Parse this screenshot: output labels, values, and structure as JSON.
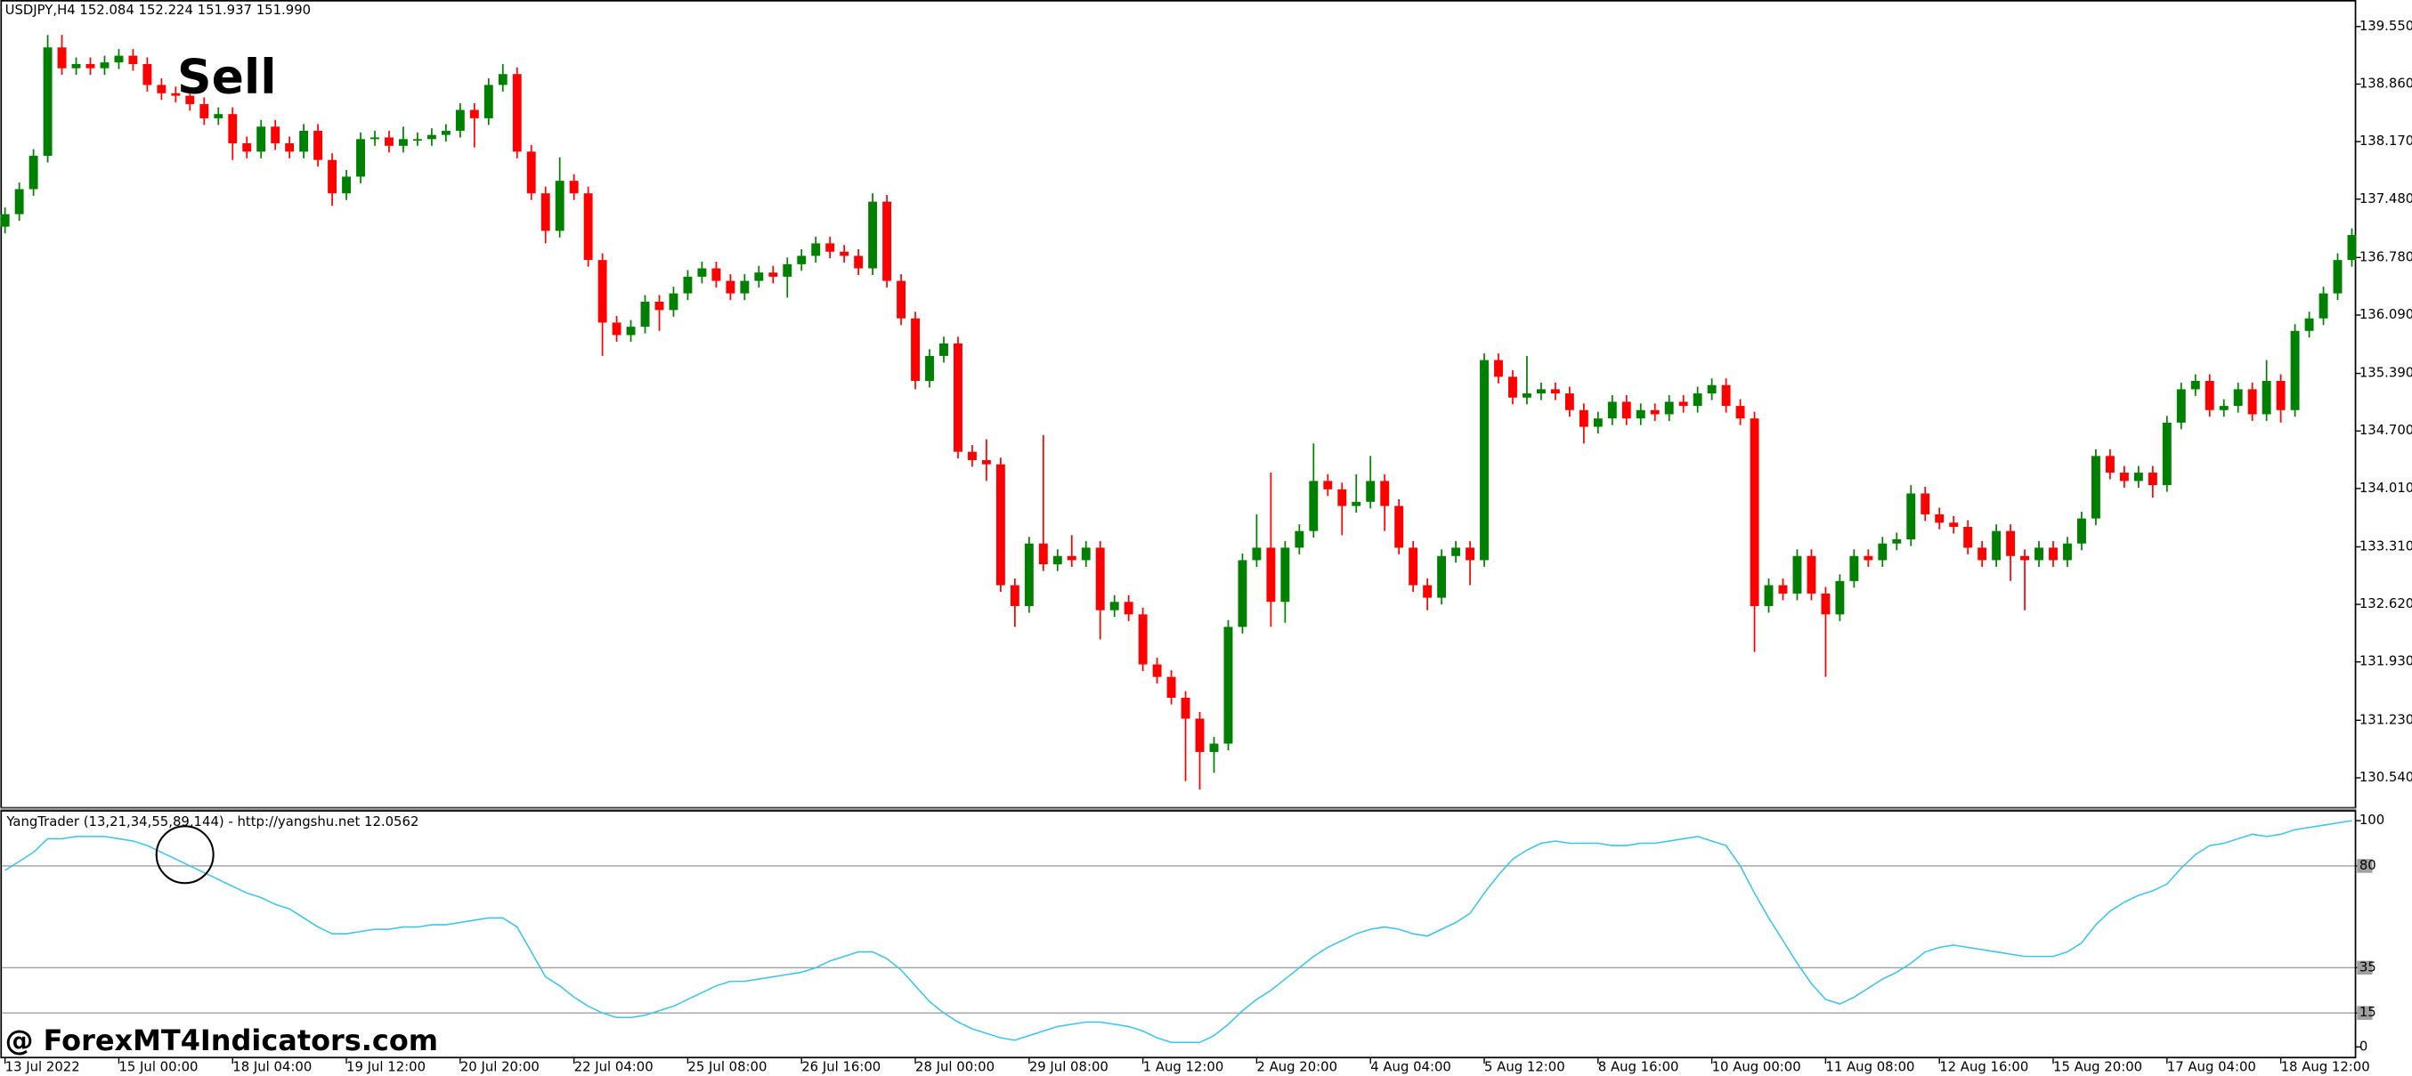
{
  "header": "USDJPY,H4  152.084 152.224 151.937 151.990",
  "watermark": "@ ForexMT4Indicators.com",
  "chart_data": [
    {
      "type": "candlestick",
      "annotation": "Sell",
      "up_color": "#008000",
      "down_color": "#ff0000",
      "open": [
        137.15,
        137.3,
        137.6,
        138.0,
        139.3,
        139.05,
        139.1,
        139.05,
        139.12,
        139.2,
        139.1,
        138.85,
        138.75,
        138.72,
        138.62,
        138.45,
        138.5,
        138.15,
        138.05,
        138.35,
        138.15,
        138.05,
        138.3,
        137.95,
        137.55,
        137.75,
        138.2,
        138.22,
        138.12,
        138.2,
        138.2,
        138.25,
        138.3,
        138.55,
        138.45,
        138.85,
        138.98,
        138.05,
        137.55,
        137.1,
        137.7,
        137.55,
        136.75,
        136.0,
        135.85,
        135.95,
        136.25,
        136.15,
        136.35,
        136.55,
        136.65,
        136.5,
        136.35,
        136.5,
        136.6,
        136.55,
        136.7,
        136.8,
        136.95,
        136.85,
        136.8,
        136.65,
        137.45,
        136.5,
        136.05,
        135.3,
        135.6,
        135.75,
        134.45,
        134.35,
        134.3,
        132.85,
        132.6,
        133.35,
        133.1,
        133.2,
        133.15,
        133.3,
        132.55,
        132.65,
        132.5,
        131.9,
        131.75,
        131.5,
        131.25,
        130.85,
        130.95,
        132.35,
        133.15,
        133.3,
        132.65,
        133.3,
        133.5,
        134.1,
        134.0,
        133.8,
        133.85,
        134.1,
        133.8,
        133.3,
        132.85,
        132.7,
        133.2,
        133.3,
        133.15,
        135.55,
        135.35,
        135.1,
        135.15,
        135.2,
        135.15,
        134.95,
        134.75,
        134.85,
        135.05,
        134.85,
        134.95,
        134.9,
        135.05,
        135.0,
        135.15,
        135.25,
        135.0,
        134.85,
        132.6,
        132.85,
        132.75,
        133.2,
        132.75,
        132.5,
        132.9,
        133.2,
        133.15,
        133.35,
        133.4,
        133.95,
        133.7,
        133.6,
        133.55,
        133.3,
        133.15,
        133.5,
        133.2,
        133.15,
        133.3,
        133.15,
        133.35,
        133.65,
        134.4,
        134.2,
        134.1,
        134.2,
        134.05,
        134.8,
        135.2,
        135.3,
        134.95,
        135.0,
        135.2,
        134.9,
        135.3,
        134.95,
        135.9,
        136.05,
        136.35,
        136.75
      ],
      "high": [
        137.38,
        137.68,
        138.08,
        139.45,
        139.45,
        139.18,
        139.18,
        139.2,
        139.28,
        139.28,
        139.18,
        138.93,
        138.83,
        138.8,
        138.7,
        138.58,
        138.58,
        138.23,
        138.43,
        138.43,
        138.23,
        138.38,
        138.38,
        138.03,
        137.83,
        138.28,
        138.3,
        138.3,
        138.35,
        138.28,
        138.33,
        138.38,
        138.63,
        138.63,
        138.93,
        139.1,
        139.06,
        138.13,
        137.63,
        137.98,
        137.78,
        137.63,
        136.83,
        136.08,
        136.03,
        136.33,
        136.33,
        136.43,
        136.63,
        136.73,
        136.73,
        136.58,
        136.58,
        136.68,
        136.68,
        136.78,
        136.88,
        137.03,
        137.03,
        136.93,
        136.88,
        137.55,
        137.53,
        136.58,
        136.13,
        135.68,
        135.83,
        135.83,
        134.53,
        134.6,
        134.38,
        132.93,
        133.43,
        134.65,
        133.28,
        133.45,
        133.38,
        133.38,
        132.73,
        132.73,
        132.58,
        131.98,
        131.83,
        131.58,
        131.33,
        131.03,
        132.43,
        133.23,
        133.7,
        134.2,
        133.38,
        133.58,
        134.55,
        134.18,
        134.08,
        134.18,
        134.4,
        134.18,
        133.88,
        133.38,
        132.93,
        133.28,
        133.38,
        133.38,
        135.63,
        135.63,
        135.43,
        135.6,
        135.28,
        135.28,
        135.23,
        135.03,
        134.93,
        135.13,
        135.13,
        135.03,
        135.03,
        135.13,
        135.13,
        135.23,
        135.33,
        135.33,
        135.08,
        134.93,
        132.93,
        132.93,
        133.28,
        133.28,
        132.83,
        132.98,
        133.28,
        133.28,
        133.43,
        133.48,
        134.05,
        134.03,
        133.78,
        133.68,
        133.63,
        133.38,
        133.58,
        133.58,
        133.28,
        133.38,
        133.38,
        133.43,
        133.73,
        134.48,
        134.48,
        134.28,
        134.28,
        134.28,
        134.88,
        135.28,
        135.38,
        135.38,
        135.08,
        135.28,
        135.28,
        135.55,
        135.38,
        135.98,
        136.13,
        136.43,
        136.83,
        137.13
      ],
      "low": [
        137.07,
        137.22,
        137.52,
        137.92,
        138.97,
        138.97,
        138.97,
        138.97,
        139.04,
        139.02,
        138.77,
        138.67,
        138.64,
        138.54,
        138.37,
        138.37,
        137.95,
        137.97,
        137.97,
        138.07,
        137.97,
        137.97,
        137.87,
        137.4,
        137.47,
        137.67,
        138.12,
        138.04,
        138.04,
        138.12,
        138.12,
        138.17,
        138.22,
        138.1,
        138.37,
        138.77,
        137.97,
        137.47,
        136.95,
        137.02,
        137.47,
        136.67,
        135.6,
        135.77,
        135.77,
        135.87,
        135.9,
        136.07,
        136.27,
        136.47,
        136.42,
        136.27,
        136.27,
        136.42,
        136.47,
        136.3,
        136.62,
        136.72,
        136.77,
        136.72,
        136.57,
        136.57,
        136.42,
        135.97,
        135.2,
        135.22,
        135.52,
        134.37,
        134.27,
        134.1,
        132.77,
        132.35,
        132.52,
        133.02,
        133.02,
        133.07,
        133.07,
        132.2,
        132.47,
        132.42,
        131.82,
        131.67,
        131.42,
        130.5,
        130.4,
        130.6,
        130.87,
        132.27,
        133.07,
        132.35,
        132.4,
        133.22,
        133.42,
        133.92,
        133.45,
        133.72,
        133.77,
        133.5,
        133.22,
        132.77,
        132.55,
        132.62,
        133.12,
        132.85,
        133.07,
        135.27,
        135.02,
        135.02,
        135.07,
        135.07,
        134.87,
        134.55,
        134.67,
        134.77,
        134.77,
        134.77,
        134.82,
        134.82,
        134.92,
        134.92,
        135.07,
        134.92,
        134.77,
        132.05,
        132.52,
        132.67,
        132.67,
        132.67,
        131.75,
        132.42,
        132.82,
        133.07,
        133.07,
        133.27,
        133.32,
        133.62,
        133.52,
        133.47,
        133.22,
        133.07,
        133.07,
        132.9,
        132.55,
        133.07,
        133.07,
        133.07,
        133.27,
        133.57,
        134.12,
        134.02,
        134.02,
        133.9,
        133.97,
        134.72,
        135.12,
        134.87,
        134.87,
        134.92,
        134.82,
        134.82,
        134.8,
        134.87,
        135.82,
        135.97,
        136.27,
        136.67
      ],
      "close": [
        137.3,
        137.6,
        138.0,
        139.3,
        139.05,
        139.1,
        139.05,
        139.12,
        139.2,
        139.1,
        138.85,
        138.75,
        138.72,
        138.62,
        138.45,
        138.5,
        138.15,
        138.05,
        138.35,
        138.15,
        138.05,
        138.3,
        137.95,
        137.55,
        137.75,
        138.2,
        138.22,
        138.12,
        138.2,
        138.2,
        138.25,
        138.3,
        138.55,
        138.45,
        138.85,
        138.98,
        138.05,
        137.55,
        137.1,
        137.7,
        137.55,
        136.75,
        136.0,
        135.85,
        135.95,
        136.25,
        136.15,
        136.35,
        136.55,
        136.65,
        136.5,
        136.35,
        136.5,
        136.6,
        136.55,
        136.7,
        136.8,
        136.95,
        136.85,
        136.8,
        136.65,
        137.45,
        136.5,
        136.05,
        135.3,
        135.6,
        135.75,
        134.45,
        134.35,
        134.3,
        132.85,
        132.6,
        133.35,
        133.1,
        133.2,
        133.15,
        133.3,
        132.55,
        132.65,
        132.5,
        131.9,
        131.75,
        131.5,
        131.25,
        130.85,
        130.95,
        132.35,
        133.15,
        133.3,
        132.65,
        133.3,
        133.5,
        134.1,
        134.0,
        133.8,
        133.85,
        134.1,
        133.8,
        133.3,
        132.85,
        132.7,
        133.2,
        133.3,
        133.15,
        135.55,
        135.35,
        135.1,
        135.15,
        135.2,
        135.15,
        134.95,
        134.75,
        134.85,
        135.05,
        134.85,
        134.95,
        134.9,
        135.05,
        135.0,
        135.15,
        135.25,
        135.0,
        134.85,
        132.6,
        132.85,
        132.75,
        133.2,
        132.75,
        132.5,
        132.9,
        133.2,
        133.15,
        133.35,
        133.4,
        133.95,
        133.7,
        133.6,
        133.55,
        133.3,
        133.15,
        133.5,
        133.2,
        133.15,
        133.3,
        133.15,
        133.35,
        133.65,
        134.4,
        134.2,
        134.1,
        134.2,
        134.05,
        134.8,
        135.2,
        135.3,
        134.95,
        135.0,
        135.2,
        134.9,
        135.3,
        134.95,
        135.9,
        136.05,
        136.35,
        136.75,
        137.05
      ],
      "xlim": [
        -0.22,
        165.2
      ],
      "ylim": [
        130.19,
        139.85
      ],
      "yticks": [
        {
          "value": 139.55,
          "label": "139.550"
        },
        {
          "value": 138.86,
          "label": "138.860"
        },
        {
          "value": 138.17,
          "label": "138.170"
        },
        {
          "value": 137.48,
          "label": "137.480"
        },
        {
          "value": 136.78,
          "label": "136.780"
        },
        {
          "value": 136.09,
          "label": "136.090"
        },
        {
          "value": 135.39,
          "label": "135.390"
        },
        {
          "value": 134.7,
          "label": "134.700"
        },
        {
          "value": 134.01,
          "label": "134.010"
        },
        {
          "value": 133.31,
          "label": "133.310"
        },
        {
          "value": 132.62,
          "label": "132.620"
        },
        {
          "value": 131.93,
          "label": "131.930"
        },
        {
          "value": 131.23,
          "label": "131.230"
        },
        {
          "value": 130.54,
          "label": "130.540"
        }
      ]
    },
    {
      "type": "line",
      "title": "YangTrader (13,21,34,55,89,144) - http://yangshu.net 12.0562",
      "color": "#3cc4f0",
      "level_color": "#a0a0a0",
      "values": [
        78,
        82,
        86,
        92,
        92,
        93,
        93,
        93,
        92,
        91,
        89,
        86,
        83,
        80,
        77,
        74,
        71,
        68,
        66,
        63,
        61,
        57,
        53,
        50,
        50,
        51,
        52,
        52,
        53,
        53,
        54,
        54,
        55,
        56,
        57,
        57,
        53,
        42,
        31,
        27,
        22,
        18,
        15,
        13,
        13,
        14,
        16,
        18,
        21,
        24,
        27,
        29,
        29,
        30,
        31,
        32,
        33,
        35,
        38,
        40,
        42,
        42,
        39,
        34,
        27,
        20,
        15,
        11,
        8,
        6,
        4,
        3,
        5,
        7,
        9,
        10,
        11,
        11,
        10,
        9,
        7,
        4,
        2,
        2,
        2,
        5,
        10,
        16,
        21,
        25,
        30,
        35,
        40,
        44,
        47,
        50,
        52,
        53,
        52,
        50,
        49,
        52,
        55,
        59,
        68,
        76,
        83,
        87,
        90,
        91,
        90,
        90,
        90,
        89,
        89,
        90,
        90,
        91,
        92,
        93,
        91,
        89,
        80,
        68,
        57,
        47,
        37,
        28,
        21,
        19,
        22,
        26,
        30,
        33,
        37,
        42,
        44,
        45,
        44,
        43,
        42,
        41,
        40,
        40,
        40,
        42,
        46,
        54,
        60,
        64,
        67,
        69,
        72,
        79,
        85,
        89,
        90,
        92,
        94,
        93,
        94,
        96,
        97,
        98,
        99,
        100
      ],
      "levels": [
        80,
        35,
        15
      ],
      "xlim": [
        -0.22,
        165.2
      ],
      "ylim": [
        -4.7,
        104
      ],
      "yticks": [
        100,
        80,
        35,
        15,
        0
      ],
      "xticks": [
        {
          "value": 0,
          "label": "13 Jul 2022"
        },
        {
          "value": 8,
          "label": "15 Jul 00:00"
        },
        {
          "value": 16,
          "label": "18 Jul 04:00"
        },
        {
          "value": 24,
          "label": "19 Jul 12:00"
        },
        {
          "value": 32,
          "label": "20 Jul 20:00"
        },
        {
          "value": 40,
          "label": "22 Jul 04:00"
        },
        {
          "value": 48,
          "label": "25 Jul 08:00"
        },
        {
          "value": 56,
          "label": "26 Jul 16:00"
        },
        {
          "value": 64,
          "label": "28 Jul 00:00"
        },
        {
          "value": 72,
          "label": "29 Jul 08:00"
        },
        {
          "value": 80,
          "label": "1 Aug 12:00"
        },
        {
          "value": 88,
          "label": "2 Aug 20:00"
        },
        {
          "value": 96,
          "label": "4 Aug 04:00"
        },
        {
          "value": 104,
          "label": "5 Aug 12:00"
        },
        {
          "value": 112,
          "label": "8 Aug 16:00"
        },
        {
          "value": 120,
          "label": "10 Aug 00:00"
        },
        {
          "value": 128,
          "label": "11 Aug 08:00"
        },
        {
          "value": 136,
          "label": "12 Aug 16:00"
        },
        {
          "value": 144,
          "label": "15 Aug 20:00"
        },
        {
          "value": 152,
          "label": "17 Aug 04:00"
        },
        {
          "value": 160,
          "label": "18 Aug 12:00"
        }
      ]
    }
  ]
}
